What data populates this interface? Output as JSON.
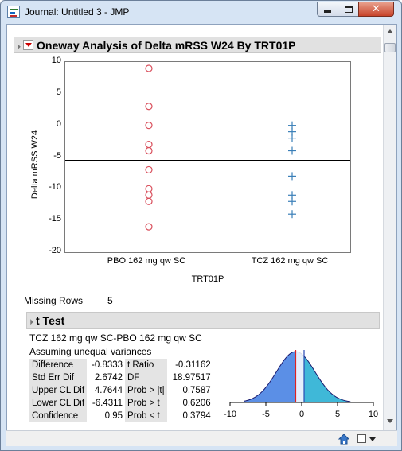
{
  "window": {
    "title": "Journal: Untitled 3 - JMP"
  },
  "oneway": {
    "title": "Oneway Analysis of Delta mRSS W24 By TRT01P",
    "ylabel": "Delta mRSS W24",
    "xlabel": "TRT01P",
    "yticks": [
      "10",
      "5",
      "0",
      "-5",
      "-10",
      "-15",
      "-20"
    ],
    "categories": [
      "PBO 162 mg qw SC",
      "TCZ 162 mg qw SC"
    ],
    "missing_rows_label": "Missing Rows",
    "missing_rows_value": "5"
  },
  "ttest": {
    "title": "t Test",
    "comparison": "TCZ 162 mg qw SC-PBO 162 mg qw SC",
    "assumption": "Assuming unequal variances",
    "rows": [
      {
        "label": "Difference",
        "value": "-0.8333",
        "label2": "t Ratio",
        "value2": "-0.31162"
      },
      {
        "label": "Std Err Dif",
        "value": "2.6742",
        "label2": "DF",
        "value2": "18.97517"
      },
      {
        "label": "Upper CL Dif",
        "value": "4.7644",
        "label2": "Prob > |t|",
        "value2": "0.7587"
      },
      {
        "label": "Lower CL Dif",
        "value": "-6.4311",
        "label2": "Prob > t",
        "value2": "0.6206"
      },
      {
        "label": "Confidence",
        "value": "0.95",
        "label2": "Prob < t",
        "value2": "0.3794"
      }
    ],
    "dist_ticks": [
      "-10",
      "-5",
      "0",
      "5",
      "10"
    ]
  },
  "colors": {
    "pbo_marker": "#d94f5c",
    "tcz_marker": "#3a7fb8",
    "dist_left": "#5b8fe6",
    "dist_right": "#3fb8d8"
  },
  "chart_data": [
    {
      "type": "scatter",
      "title": "Oneway Analysis of Delta mRSS W24 By TRT01P",
      "xlabel": "TRT01P",
      "ylabel": "Delta mRSS W24",
      "ylim": [
        -20,
        10
      ],
      "categories": [
        "PBO 162 mg qw SC",
        "TCZ 162 mg qw SC"
      ],
      "series": [
        {
          "name": "PBO 162 mg qw SC",
          "marker": "circle",
          "values": [
            9,
            3,
            0,
            -3,
            -4,
            -7,
            -10,
            -11,
            -12,
            -16
          ]
        },
        {
          "name": "TCZ 162 mg qw SC",
          "marker": "plus",
          "values": [
            0,
            -1,
            -2,
            -4,
            -8,
            -11,
            -12,
            -14
          ]
        }
      ],
      "reference_line": -5.5,
      "grid": false
    },
    {
      "type": "area",
      "xlim": [
        -10,
        10
      ],
      "mean": -0.8333,
      "std_err": 2.6742,
      "reference_lines": [
        -0.8333,
        0
      ]
    }
  ]
}
